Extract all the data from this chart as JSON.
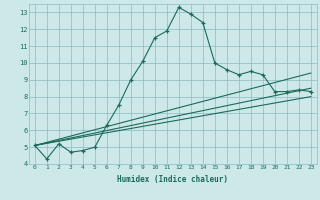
{
  "xlabel": "Humidex (Indice chaleur)",
  "ylabel": "",
  "bg_color": "#cce8e8",
  "grid_color": "#8bbcbc",
  "line_color": "#1a6b5a",
  "xlim": [
    -0.5,
    23.5
  ],
  "ylim": [
    4,
    13.5
  ],
  "yticks": [
    4,
    5,
    6,
    7,
    8,
    9,
    10,
    11,
    12,
    13
  ],
  "xticks": [
    0,
    1,
    2,
    3,
    4,
    5,
    6,
    7,
    8,
    9,
    10,
    11,
    12,
    13,
    14,
    15,
    16,
    17,
    18,
    19,
    20,
    21,
    22,
    23
  ],
  "curve1_x": [
    0,
    1,
    2,
    3,
    4,
    5,
    6,
    7,
    8,
    9,
    10,
    11,
    12,
    13,
    14,
    15,
    16,
    17,
    18,
    19,
    20,
    21,
    22,
    23
  ],
  "curve1_y": [
    5.1,
    4.3,
    5.2,
    4.7,
    4.8,
    5.0,
    6.3,
    7.5,
    9.0,
    10.1,
    11.5,
    11.9,
    13.3,
    12.9,
    12.4,
    10.0,
    9.6,
    9.3,
    9.5,
    9.3,
    8.3,
    8.3,
    8.4,
    8.3
  ],
  "line1_x": [
    0,
    23
  ],
  "line1_y": [
    5.1,
    8.5
  ],
  "line2_x": [
    0,
    23
  ],
  "line2_y": [
    5.1,
    9.4
  ],
  "line3_x": [
    0,
    23
  ],
  "line3_y": [
    5.1,
    8.0
  ]
}
